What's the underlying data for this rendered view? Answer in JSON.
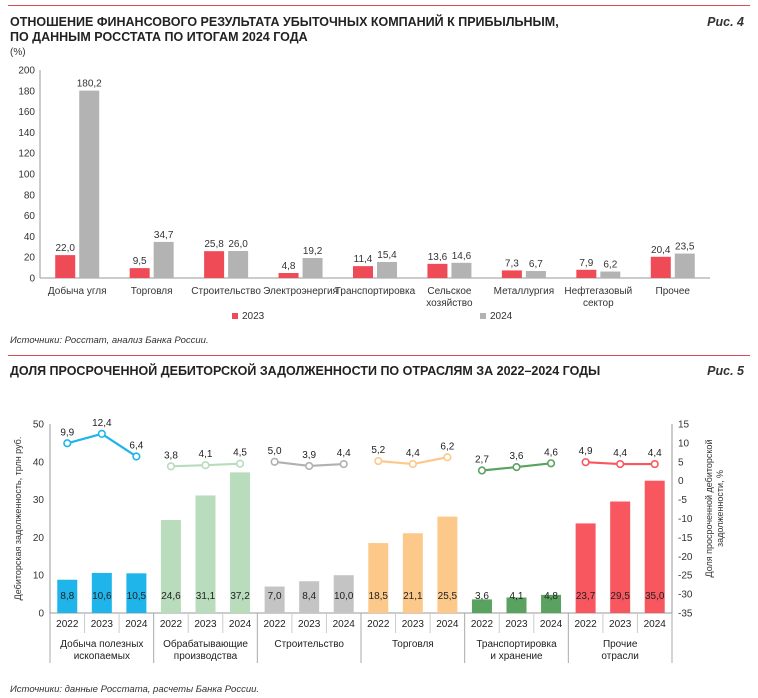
{
  "fig4": {
    "title_line1": "ОТНОШЕНИЕ ФИНАНСОВОГО РЕЗУЛЬТАТА УБЫТОЧНЫХ КОМПАНИЙ К ПРИБЫЛЬНЫМ,",
    "title_line2": "ПО ДАННЫМ РОССТАТА ПО ИТОГАМ 2024 ГОДА",
    "fig_label": "Рис. 4",
    "unit": "(%)",
    "source": "Источники: Росстат, анализ Банка России."
  },
  "fig5": {
    "title": "ДОЛЯ ПРОСРОЧЕННОЙ ДЕБИТОРСКОЙ ЗАДОЛЖЕННОСТИ ПО ОТРАСЛЯМ ЗА 2022–2024 ГОДЫ",
    "fig_label": "Рис. 5",
    "source": "Источники: данные Росстата, расчеты Банка России."
  },
  "chart_data": [
    {
      "type": "bar",
      "title": "ОТНОШЕНИЕ ФИНАНСОВОГО РЕЗУЛЬТАТА УБЫТОЧНЫХ КОМПАНИЙ К ПРИБЫЛЬНЫМ, ПО ДАННЫМ РОССТАТА ПО ИТОГАМ 2024 ГОДА",
      "ylabel": "(%)",
      "ylim": [
        0,
        200
      ],
      "yticks": [
        0,
        20,
        40,
        60,
        80,
        100,
        120,
        140,
        160,
        180,
        200
      ],
      "categories": [
        [
          "Добыча угля"
        ],
        [
          "Торговля"
        ],
        [
          "Строительство"
        ],
        [
          "Электроэнергия"
        ],
        [
          "Транспортировка"
        ],
        [
          "Сельское",
          "хозяйство"
        ],
        [
          "Металлургия"
        ],
        [
          "Нефтегазовый",
          "сектор"
        ],
        [
          "Прочее"
        ]
      ],
      "series": [
        {
          "name": "2023",
          "color": "#ee4b57",
          "values": [
            22.0,
            9.5,
            25.8,
            4.8,
            11.4,
            13.6,
            7.3,
            7.9,
            20.4
          ],
          "labels": [
            "22,0",
            "9,5",
            "25,8",
            "4,8",
            "11,4",
            "13,6",
            "7,3",
            "7,9",
            "20,4"
          ]
        },
        {
          "name": "2024",
          "color": "#b3b3b3",
          "values": [
            180.2,
            34.7,
            26.0,
            19.2,
            15.4,
            14.6,
            6.7,
            6.2,
            23.5
          ],
          "labels": [
            "180,2",
            "34,7",
            "26,0",
            "19,2",
            "15,4",
            "14,6",
            "6,7",
            "6,2",
            "23,5"
          ]
        }
      ],
      "legend": "bottom"
    },
    {
      "type": "bar+line",
      "title": "ДОЛЯ ПРОСРОЧЕННОЙ ДЕБИТОРСКОЙ ЗАДОЛЖЕННОСТИ ПО ОТРАСЛЯМ ЗА 2022–2024 ГОДЫ",
      "ylabel_left": "Дебиторская задолженность, трлн руб.",
      "ylabel_right": "Доля просроченной дебиторской задолженности, %",
      "ylim_left": [
        0,
        50
      ],
      "yticks_left": [
        0,
        10,
        20,
        30,
        40,
        50
      ],
      "ylim_right": [
        -35,
        15
      ],
      "yticks_right": [
        15,
        10,
        5,
        0,
        -5,
        -10,
        -15,
        -20,
        -25,
        -30,
        -35
      ],
      "years": [
        "2022",
        "2023",
        "2024"
      ],
      "groups": [
        {
          "name": [
            "Добыча полезных",
            "ископаемых"
          ],
          "color": "#1fb5ea",
          "light": "#1fb5ea",
          "bars": [
            8.8,
            10.6,
            10.5
          ],
          "bar_labels": [
            "8,8",
            "10,6",
            "10,5"
          ],
          "share": [
            9.9,
            12.4,
            6.4
          ],
          "share_labels": [
            "9,9",
            "12,4",
            "6,4"
          ]
        },
        {
          "name": [
            "Обрабатывающие",
            "производства"
          ],
          "color": "#b9dcbc",
          "light": "#b9dcbc",
          "bars": [
            24.6,
            31.1,
            37.2
          ],
          "bar_labels": [
            "24,6",
            "31,1",
            "37,2"
          ],
          "share": [
            3.8,
            4.1,
            4.5
          ],
          "share_labels": [
            "3,8",
            "4,1",
            "4,5"
          ]
        },
        {
          "name": [
            "Строительство"
          ],
          "color": "#c4c4c4",
          "light": "#b0b0b0",
          "bars": [
            7.0,
            8.4,
            10.0
          ],
          "bar_labels": [
            "7,0",
            "8,4",
            "10,0"
          ],
          "share": [
            5.0,
            3.9,
            4.4
          ],
          "share_labels": [
            "5,0",
            "3,9",
            "4,4"
          ]
        },
        {
          "name": [
            "Торговля"
          ],
          "color": "#fcc98a",
          "light": "#fcc98a",
          "bars": [
            18.5,
            21.1,
            25.5
          ],
          "bar_labels": [
            "18,5",
            "21,1",
            "25,5"
          ],
          "share": [
            5.2,
            4.4,
            6.2
          ],
          "share_labels": [
            "5,2",
            "4,4",
            "6,2"
          ]
        },
        {
          "name": [
            "Транспортировка",
            "и хранение"
          ],
          "color": "#5aa25f",
          "light": "#5aa25f",
          "bars": [
            3.6,
            4.1,
            4.8
          ],
          "bar_labels": [
            "3,6",
            "4,1",
            "4,8"
          ],
          "share": [
            2.7,
            3.6,
            4.6
          ],
          "share_labels": [
            "2,7",
            "3,6",
            "4,6"
          ]
        },
        {
          "name": [
            "Прочие",
            "отрасли"
          ],
          "color": "#f9575f",
          "light": "#f9575f",
          "bars": [
            23.7,
            29.5,
            35.0
          ],
          "bar_labels": [
            "23,7",
            "29,5",
            "35,0"
          ],
          "share": [
            4.9,
            4.4,
            4.4
          ],
          "share_labels": [
            "4,9",
            "4,4",
            "4,4"
          ]
        }
      ]
    }
  ]
}
